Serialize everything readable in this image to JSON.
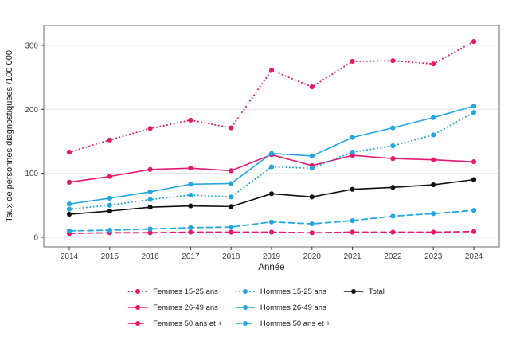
{
  "chart_data": {
    "type": "line",
    "title": "",
    "xlabel": "Année",
    "ylabel": "Taux de personnes diagnostiquées /100 000",
    "x": [
      2014,
      2015,
      2016,
      2017,
      2018,
      2019,
      2020,
      2021,
      2022,
      2023,
      2024
    ],
    "xlim": [
      2013.37,
      2024.63
    ],
    "ylim": [
      -15,
      331
    ],
    "yticks": [
      0,
      100,
      200,
      300
    ],
    "grid": true,
    "legend_position": "bottom",
    "series": [
      {
        "name": "Femmes 15-25 ans",
        "color": "#e4186c",
        "style": "dotted",
        "values": [
          133,
          152,
          170,
          183,
          171,
          261,
          235,
          275,
          276,
          271,
          306
        ]
      },
      {
        "name": "Femmes 26-49 ans",
        "color": "#e4186c",
        "style": "solid",
        "values": [
          86,
          95,
          106,
          108,
          104,
          129,
          112,
          128,
          123,
          121,
          118
        ]
      },
      {
        "name": "Femmes 50 ans et +",
        "color": "#e4186c",
        "style": "dashed",
        "values": [
          6,
          7,
          7,
          8,
          8,
          8,
          7,
          8,
          8,
          8,
          9
        ]
      },
      {
        "name": "Hommes 15-25 ans",
        "color": "#24a7df",
        "style": "dotted",
        "values": [
          44,
          50,
          59,
          66,
          63,
          110,
          108,
          133,
          143,
          160,
          195
        ]
      },
      {
        "name": "Hommes 26-49 ans",
        "color": "#24a7df",
        "style": "solid",
        "values": [
          52,
          61,
          71,
          83,
          84,
          131,
          127,
          156,
          171,
          187,
          205
        ]
      },
      {
        "name": "Hommes 50 ans et +",
        "color": "#24a7df",
        "style": "dashed",
        "values": [
          10,
          11,
          13,
          15,
          16,
          24,
          21,
          26,
          33,
          37,
          42
        ]
      },
      {
        "name": "Total",
        "color": "#111111",
        "style": "solid",
        "values": [
          36,
          41,
          47,
          49,
          48,
          68,
          63,
          75,
          78,
          82,
          90
        ]
      }
    ],
    "legend_columns": [
      [
        0,
        1,
        2
      ],
      [
        3,
        4,
        5
      ],
      [
        6
      ]
    ]
  },
  "colors": {
    "femmes": "#e4186c",
    "hommes": "#24a7df",
    "total": "#111111",
    "gridline": "#e7e7e7",
    "panel_border": "#828282",
    "tick": "#333333",
    "tick_label": "#404040",
    "background": "#ffffff"
  }
}
